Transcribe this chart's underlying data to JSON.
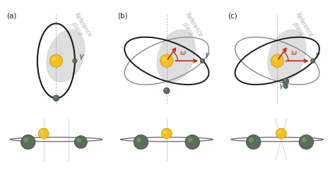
{
  "bg_color": "#ffffff",
  "panel_labels": [
    "(a)",
    "(b)",
    "(c)"
  ],
  "ref_plane_color": "#c8c8c8",
  "ref_plane_alpha": 0.6,
  "orbit_color_dark": "#1a1a1a",
  "orbit_color_light": "#888888",
  "sun_color": "#f2c020",
  "sun_edge": "#c89000",
  "planet_color": "#5a6e5a",
  "planet_highlight": "#8aaa8a",
  "planet_edge": "#334433",
  "arrow_color": "#cc2200",
  "gamma_color": "#444444",
  "vline_color": "#999999",
  "label_fontsize": 7.5,
  "gamma_fontsize": 8,
  "omega_fontsize": 7,
  "refplane_text_color": "#b0b0b0",
  "refplane_fontsize": 5.5
}
